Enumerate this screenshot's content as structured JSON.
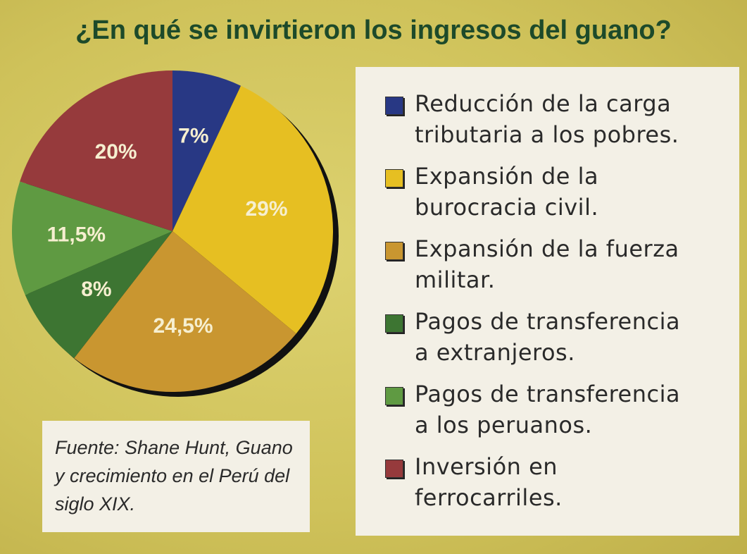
{
  "chart_data": {
    "type": "pie",
    "title": "¿En qué se invirtieron los ingresos del guano?",
    "categories": [
      "Reducción de la carga tributaria a los pobres.",
      "Expansión de la burocracia civil.",
      "Expansión de la fuerza militar.",
      "Pagos de transferencia a extranjeros.",
      "Pagos de transferencia a los peruanos.",
      "Inversión en ferrocarriles."
    ],
    "values": [
      7,
      29,
      24.5,
      8,
      11.5,
      20
    ],
    "value_labels": [
      "7%",
      "29%",
      "24,5%",
      "8%",
      "11,5%",
      "20%"
    ],
    "colors": [
      "#283884",
      "#e6bf22",
      "#c99630",
      "#3d7532",
      "#5f9a42",
      "#963a3c"
    ],
    "source": "Fuente: Shane Hunt, Guano y crecimiento en el Perú del siglo XIX."
  }
}
